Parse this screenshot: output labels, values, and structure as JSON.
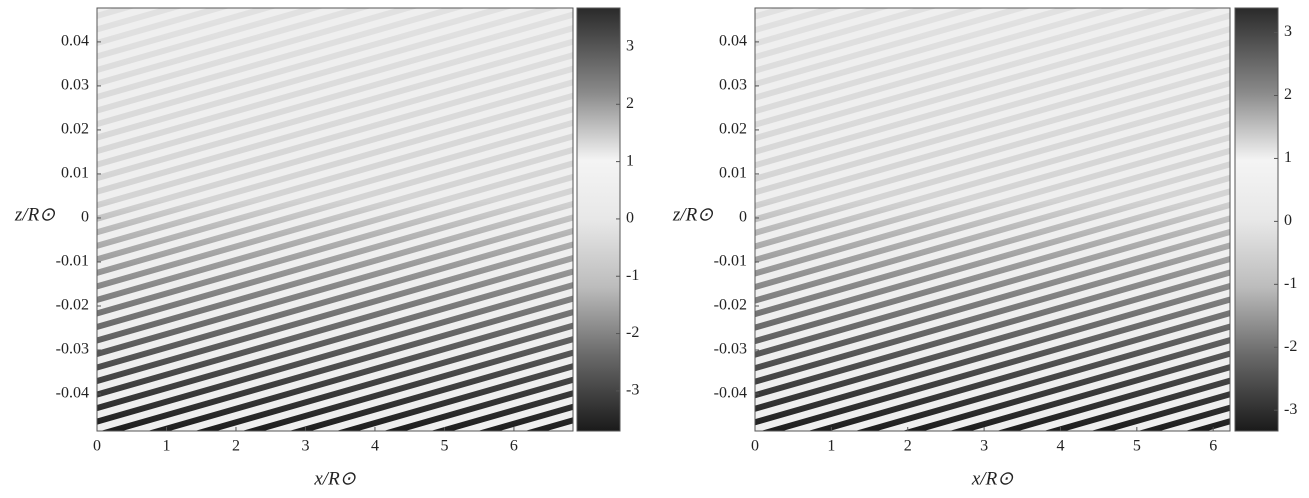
{
  "chart_data": [
    {
      "type": "heatmap",
      "xlabel": "x/R⊙",
      "ylabel": "z/R⊙",
      "xlim": [
        0,
        6.85
      ],
      "ylim": [
        -0.0484,
        0.0477
      ],
      "xticks": [
        0,
        1,
        2,
        3,
        4,
        5,
        6
      ],
      "yticks": [
        0.04,
        0.03,
        0.02,
        0.01,
        0,
        -0.01,
        -0.02,
        -0.03,
        -0.04
      ],
      "clim": [
        -3.7,
        3.68
      ],
      "cticks": [
        3,
        2,
        1,
        0,
        -1,
        -2,
        -3
      ]
    },
    {
      "type": "heatmap",
      "xlabel": "x/R⊙",
      "ylabel": "z/R⊙",
      "xlim": [
        0,
        6.22
      ],
      "ylim": [
        -0.0484,
        0.0477
      ],
      "xticks": [
        0,
        1,
        2,
        3,
        4,
        5,
        6
      ],
      "yticks": [
        0.04,
        0.03,
        0.02,
        0.01,
        0,
        -0.01,
        -0.02,
        -0.03,
        -0.04
      ],
      "clim": [
        -3.33,
        3.39
      ],
      "cticks": [
        3,
        2,
        1,
        0,
        -1,
        -2,
        -3
      ]
    }
  ]
}
